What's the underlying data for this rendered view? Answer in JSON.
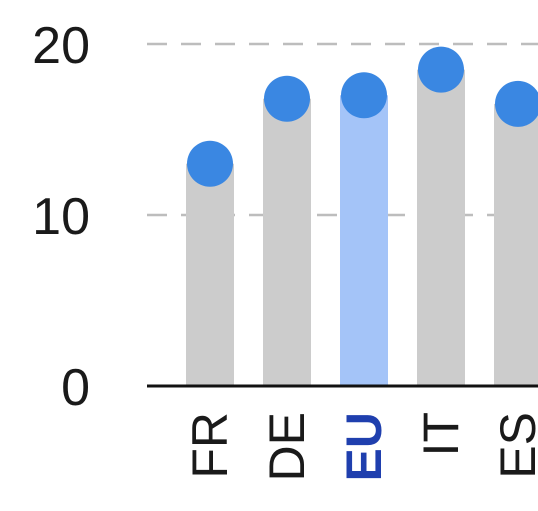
{
  "chart_data": {
    "type": "bar",
    "categories": [
      "FR",
      "DE",
      "EU",
      "IT",
      "ES"
    ],
    "values": [
      13,
      16.8,
      17,
      18.5,
      16.5
    ],
    "highlight": "EU",
    "ylim": [
      0,
      20
    ],
    "yticks": [
      "0",
      "10",
      "20"
    ],
    "grid": true,
    "colors": {
      "bar": "#cccccc",
      "bar_highlight": "#a4c4f8",
      "marker": "#3a87e2",
      "highlight_label": "#1f3fae",
      "grid": "#bdbdbd",
      "axis": "#111111"
    }
  }
}
